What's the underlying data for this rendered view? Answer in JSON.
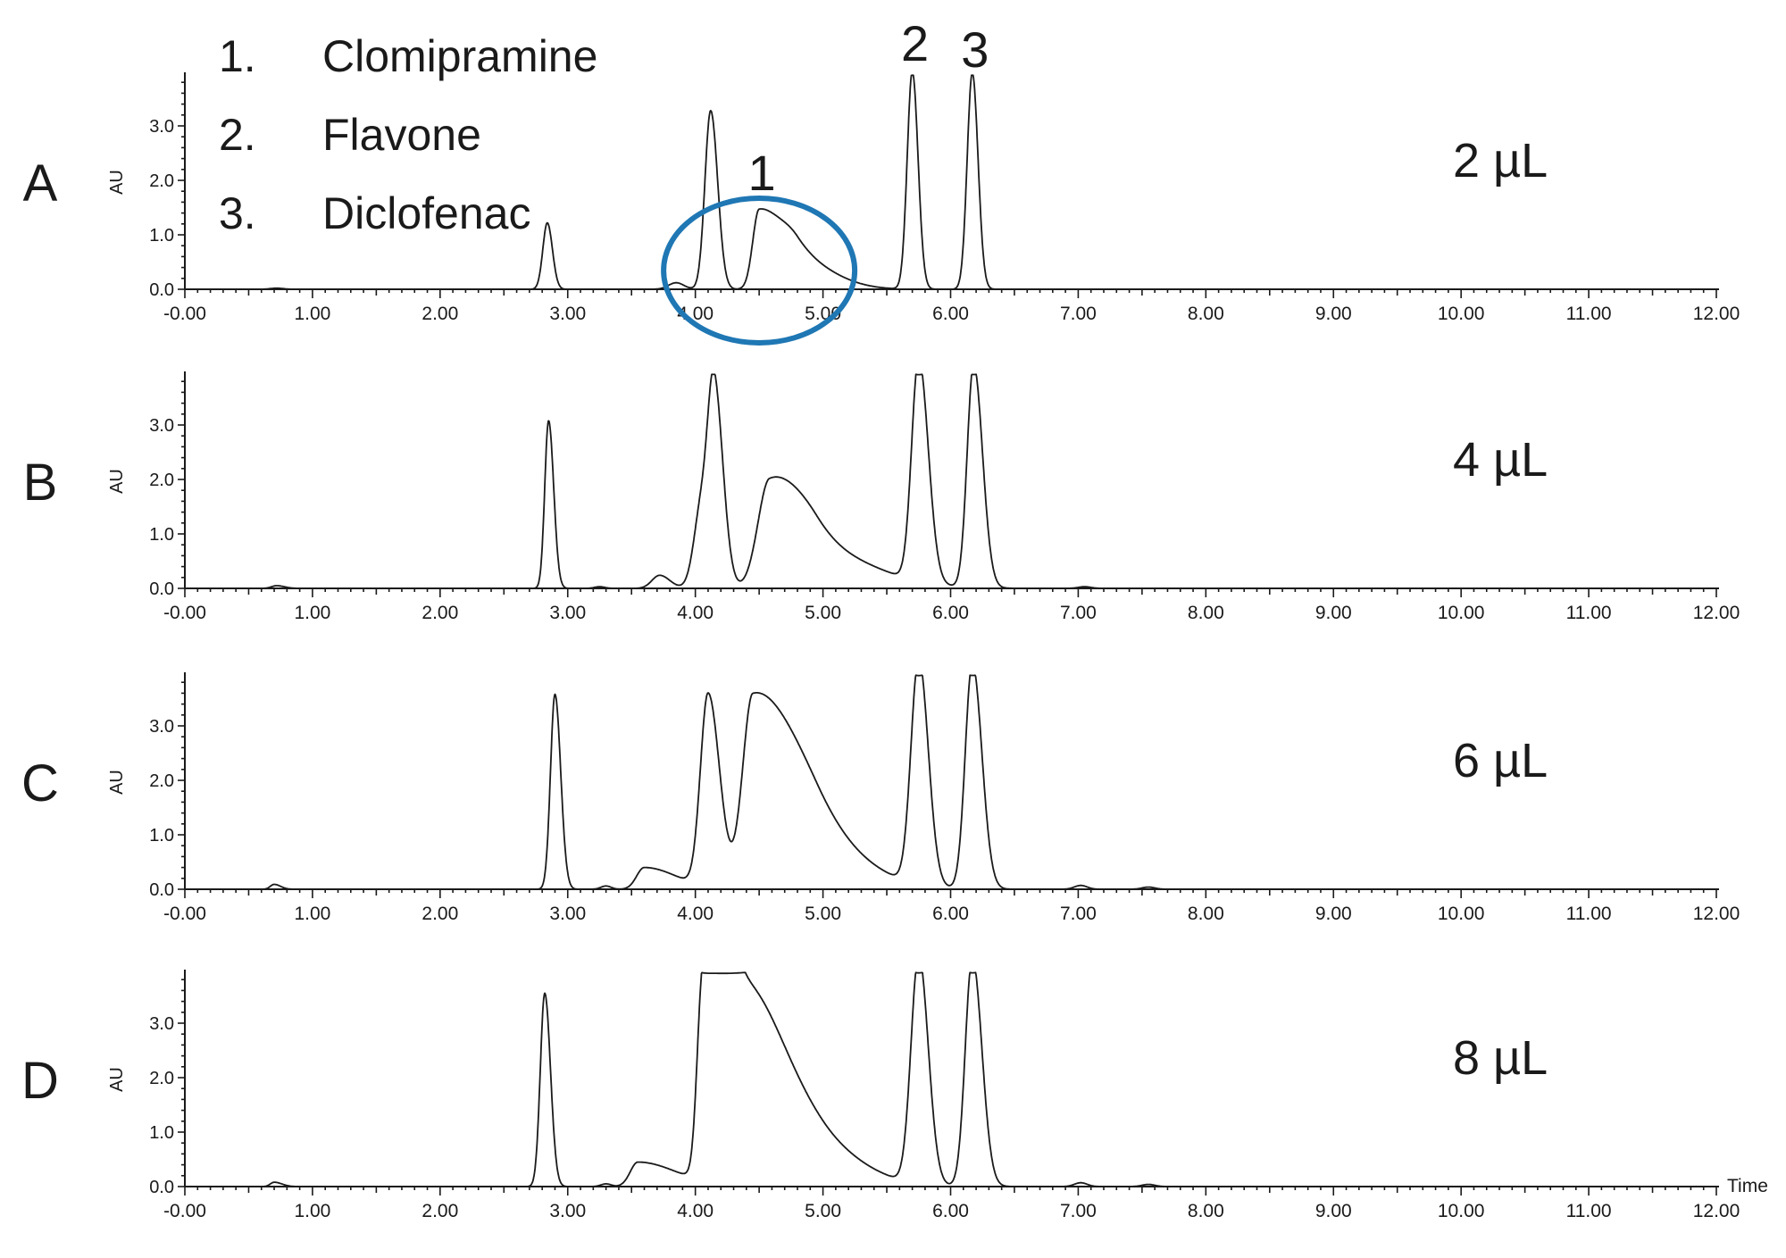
{
  "figure": {
    "legend": [
      {
        "number": "1.",
        "name": "Clomipramine"
      },
      {
        "number": "2.",
        "name": "Flavone"
      },
      {
        "number": "3.",
        "name": "Diclofenac"
      }
    ],
    "peak_labels": [
      "1",
      "2",
      "3"
    ],
    "highlight_color": "#1f77b4",
    "trace_color": "#1a1a1a",
    "x_axis_title": "Time"
  },
  "chart_data": [
    {
      "type": "line",
      "panel": "A",
      "injection_volume": "2 µL",
      "ylabel": "AU",
      "xlim": [
        -0.0,
        12.0
      ],
      "ylim": [
        0.0,
        4.0
      ],
      "xticks": [
        "-0.00",
        "1.00",
        "2.00",
        "3.00",
        "4.00",
        "5.00",
        "6.00",
        "7.00",
        "8.00",
        "9.00",
        "10.00",
        "11.00",
        "12.00"
      ],
      "yticks": [
        "0.0",
        "1.0",
        "2.0",
        "3.0"
      ],
      "peaks": [
        {
          "t": 0.72,
          "h": 0.02,
          "wl": 0.05,
          "wr": 0.05
        },
        {
          "t": 2.84,
          "h": 1.22,
          "wl": 0.035,
          "wr": 0.04
        },
        {
          "t": 3.85,
          "h": 0.12,
          "wl": 0.06,
          "wr": 0.06
        },
        {
          "t": 4.12,
          "h": 3.28,
          "wl": 0.045,
          "wr": 0.055
        },
        {
          "t": 4.5,
          "h": 1.45,
          "wl": 0.05,
          "wr": 0.2
        },
        {
          "t": 4.8,
          "h": 0.5,
          "wl": 0.12,
          "wr": 0.28
        },
        {
          "t": 5.7,
          "h": 4.0,
          "wl": 0.04,
          "wr": 0.045
        },
        {
          "t": 6.17,
          "h": 3.98,
          "wl": 0.04,
          "wr": 0.045
        }
      ]
    },
    {
      "type": "line",
      "panel": "B",
      "injection_volume": "4 µL",
      "ylabel": "AU",
      "xlim": [
        -0.0,
        12.0
      ],
      "ylim": [
        0.0,
        4.0
      ],
      "xticks": [
        "-0.00",
        "1.00",
        "2.00",
        "3.00",
        "4.00",
        "5.00",
        "6.00",
        "7.00",
        "8.00",
        "9.00",
        "10.00",
        "11.00",
        "12.00"
      ],
      "yticks": [
        "0.0",
        "1.0",
        "2.0",
        "3.0"
      ],
      "peaks": [
        {
          "t": 0.72,
          "h": 0.05,
          "wl": 0.04,
          "wr": 0.06
        },
        {
          "t": 2.85,
          "h": 3.08,
          "wl": 0.03,
          "wr": 0.04
        },
        {
          "t": 3.25,
          "h": 0.03,
          "wl": 0.04,
          "wr": 0.04
        },
        {
          "t": 3.72,
          "h": 0.24,
          "wl": 0.06,
          "wr": 0.08
        },
        {
          "t": 4.05,
          "h": 1.5,
          "wl": 0.06,
          "wr": 0.08
        },
        {
          "t": 4.15,
          "h": 3.3,
          "wl": 0.05,
          "wr": 0.07
        },
        {
          "t": 4.58,
          "h": 1.9,
          "wl": 0.09,
          "wr": 0.26
        },
        {
          "t": 4.95,
          "h": 0.65,
          "wl": 0.2,
          "wr": 0.45
        },
        {
          "t": 5.75,
          "h": 4.1,
          "wl": 0.055,
          "wr": 0.075
        },
        {
          "t": 6.18,
          "h": 4.1,
          "wl": 0.05,
          "wr": 0.07
        },
        {
          "t": 7.05,
          "h": 0.03,
          "wl": 0.05,
          "wr": 0.05
        }
      ]
    },
    {
      "type": "line",
      "panel": "C",
      "injection_volume": "6 µL",
      "ylabel": "AU",
      "xlim": [
        -0.0,
        12.0
      ],
      "ylim": [
        0.0,
        4.0
      ],
      "xticks": [
        "-0.00",
        "1.00",
        "2.00",
        "3.00",
        "4.00",
        "5.00",
        "6.00",
        "7.00",
        "8.00",
        "9.00",
        "10.00",
        "11.00",
        "12.00"
      ],
      "yticks": [
        "0.0",
        "1.0",
        "2.0",
        "3.0"
      ],
      "peaks": [
        {
          "t": 0.7,
          "h": 0.09,
          "wl": 0.03,
          "wr": 0.05
        },
        {
          "t": 2.9,
          "h": 3.58,
          "wl": 0.035,
          "wr": 0.045
        },
        {
          "t": 3.3,
          "h": 0.06,
          "wl": 0.04,
          "wr": 0.04
        },
        {
          "t": 3.6,
          "h": 0.4,
          "wl": 0.06,
          "wr": 0.25
        },
        {
          "t": 4.1,
          "h": 3.55,
          "wl": 0.06,
          "wr": 0.09
        },
        {
          "t": 4.45,
          "h": 3.5,
          "wl": 0.08,
          "wr": 0.35
        },
        {
          "t": 4.95,
          "h": 0.7,
          "wl": 0.25,
          "wr": 0.4
        },
        {
          "t": 5.75,
          "h": 4.15,
          "wl": 0.06,
          "wr": 0.075
        },
        {
          "t": 6.17,
          "h": 4.15,
          "wl": 0.055,
          "wr": 0.075
        },
        {
          "t": 7.02,
          "h": 0.07,
          "wl": 0.05,
          "wr": 0.05
        },
        {
          "t": 7.55,
          "h": 0.04,
          "wl": 0.05,
          "wr": 0.05
        }
      ]
    },
    {
      "type": "line",
      "panel": "D",
      "injection_volume": "8 µL",
      "ylabel": "AU",
      "xlim": [
        -0.0,
        12.0
      ],
      "ylim": [
        0.0,
        4.0
      ],
      "xticks": [
        "-0.00",
        "1.00",
        "2.00",
        "3.00",
        "4.00",
        "5.00",
        "6.00",
        "7.00",
        "8.00",
        "9.00",
        "10.00",
        "11.00",
        "12.00"
      ],
      "yticks": [
        "0.0",
        "1.0",
        "2.0",
        "3.0"
      ],
      "peaks": [
        {
          "t": 0.7,
          "h": 0.08,
          "wl": 0.03,
          "wr": 0.06
        },
        {
          "t": 2.82,
          "h": 3.55,
          "wl": 0.035,
          "wr": 0.045
        },
        {
          "t": 3.3,
          "h": 0.05,
          "wl": 0.04,
          "wr": 0.04
        },
        {
          "t": 3.55,
          "h": 0.45,
          "wl": 0.06,
          "wr": 0.3
        },
        {
          "t": 4.05,
          "h": 2.5,
          "wl": 0.04,
          "wr": 0.05
        },
        {
          "t": 4.15,
          "h": 3.3,
          "wl": 0.07,
          "wr": 0.1
        },
        {
          "t": 4.35,
          "h": 3.7,
          "wl": 0.12,
          "wr": 0.35
        },
        {
          "t": 5.0,
          "h": 0.55,
          "wl": 0.3,
          "wr": 0.35
        },
        {
          "t": 5.75,
          "h": 4.2,
          "wl": 0.06,
          "wr": 0.075
        },
        {
          "t": 6.17,
          "h": 4.2,
          "wl": 0.055,
          "wr": 0.075
        },
        {
          "t": 7.02,
          "h": 0.07,
          "wl": 0.05,
          "wr": 0.05
        },
        {
          "t": 7.55,
          "h": 0.04,
          "wl": 0.05,
          "wr": 0.05
        }
      ]
    }
  ]
}
